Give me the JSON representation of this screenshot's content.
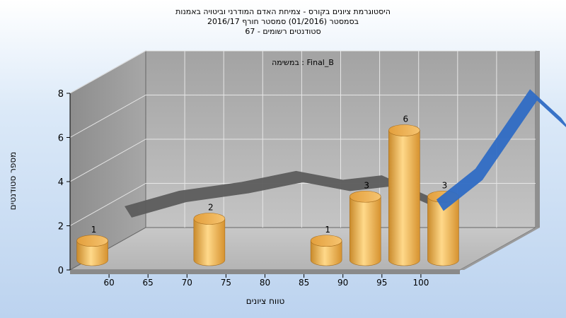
{
  "title": {
    "line1": "היסטוגרמת ציונים בקורס - צמיחת האדם המודרני וביטויה באמנות",
    "line2": "בסמסטר (01/2016) סמסטר חורף 2016/17",
    "line3": "סטודנטים רשומים - 67"
  },
  "annotation": "במשימה : Final_B",
  "chart_data": {
    "type": "bar",
    "title": "היסטוגרמת ציונים בקורס - צמיחת האדם המודרני וביטויה באמנות",
    "xlabel": "טווח ציונים",
    "ylabel": "מספר סטודנטים",
    "x_ticks": [
      "60",
      "65",
      "70",
      "75",
      "80",
      "85",
      "90",
      "95",
      "100"
    ],
    "ylim": [
      0,
      8
    ],
    "y_ticks": [
      0,
      2,
      4,
      6,
      8
    ],
    "grid": true,
    "bars": [
      {
        "x": 57.5,
        "value": 1
      },
      {
        "x": 72.5,
        "value": 2
      },
      {
        "x": 87.5,
        "value": 1
      },
      {
        "x": 92.5,
        "value": 3
      },
      {
        "x": 97.5,
        "value": 6
      },
      {
        "x": 102.5,
        "value": 3
      }
    ],
    "curve": [
      {
        "x": 55,
        "y": 1.5
      },
      {
        "x": 62,
        "y": 2.2
      },
      {
        "x": 70,
        "y": 2.6
      },
      {
        "x": 77,
        "y": 3.1
      },
      {
        "x": 83,
        "y": 2.7
      },
      {
        "x": 88,
        "y": 2.9
      },
      {
        "x": 95,
        "y": 1.8
      },
      {
        "x": 100,
        "y": 3.2
      },
      {
        "x": 107,
        "y": 6.8
      },
      {
        "x": 111,
        "y": 5.5
      },
      {
        "x": 115,
        "y": 3.6
      }
    ],
    "colors": {
      "bars": "#E8A13A",
      "curve_back": "#5c5c5c",
      "curve_front": "#2f6bc4"
    }
  }
}
